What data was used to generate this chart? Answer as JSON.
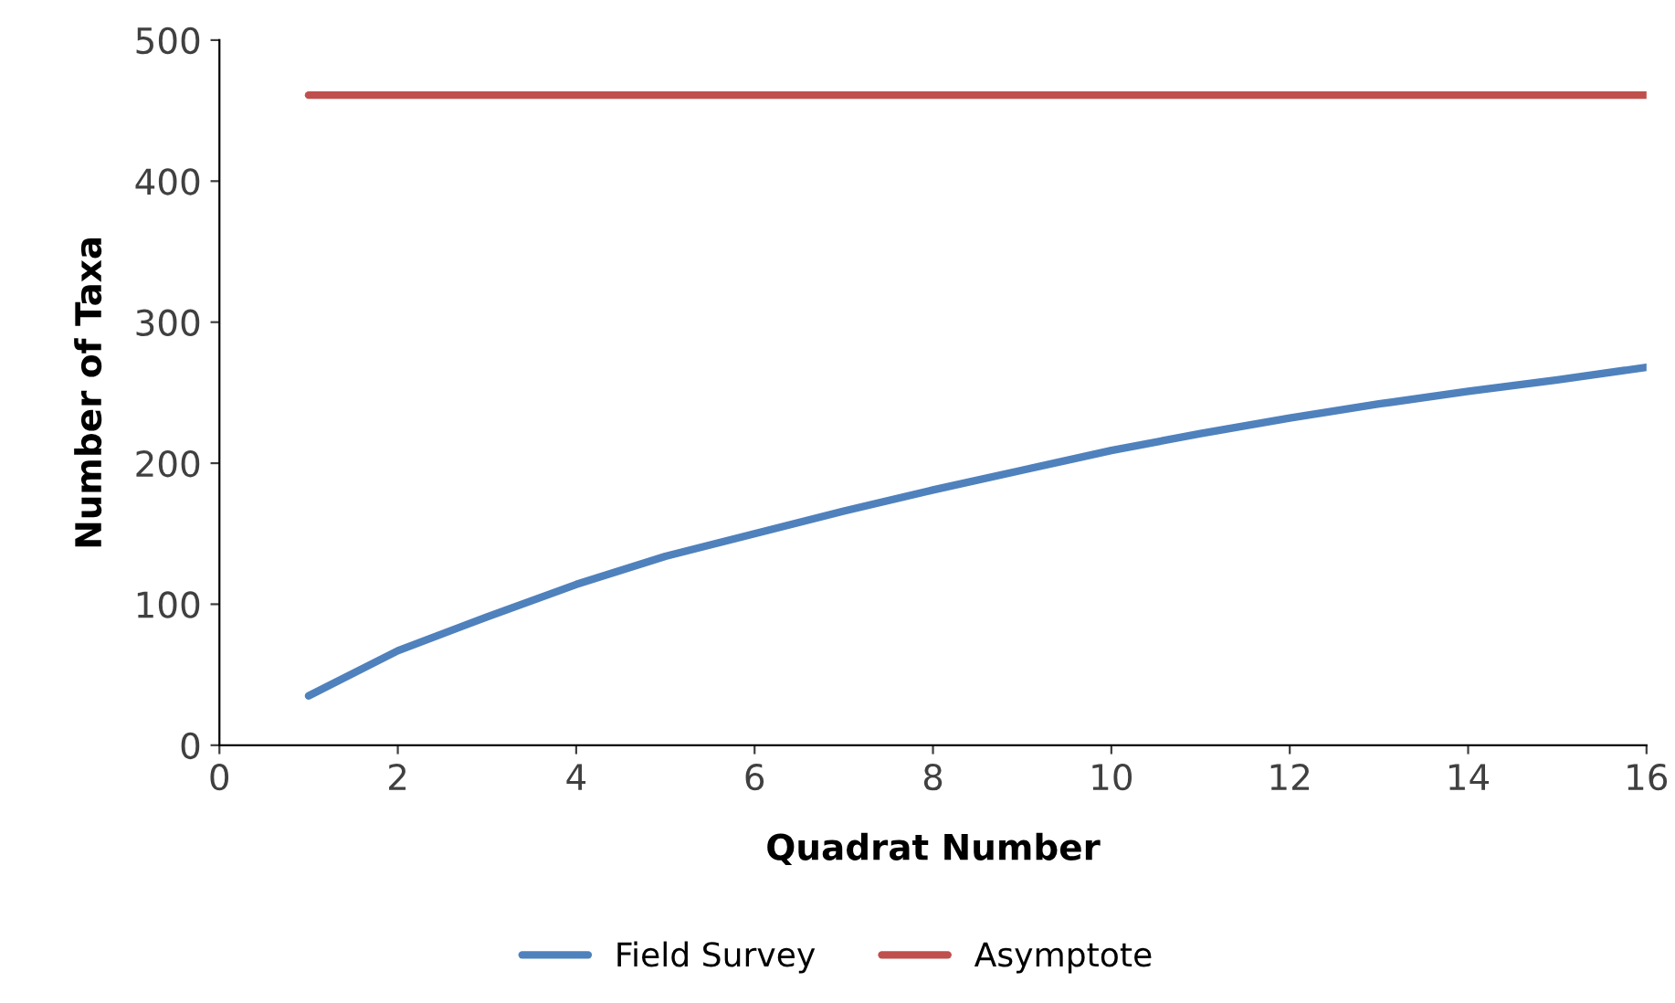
{
  "chart_data": {
    "type": "line",
    "xlabel": "Quadrat Number",
    "ylabel": "Number of Taxa",
    "series": [
      {
        "name": "Field Survey",
        "color": "#4f81bd",
        "x": [
          1,
          2,
          3,
          4,
          5,
          6,
          7,
          8,
          9,
          10,
          11,
          12,
          13,
          14,
          15,
          16
        ],
        "values": [
          35,
          67,
          91,
          114,
          134,
          150,
          166,
          181,
          195,
          209,
          221,
          232,
          242,
          251,
          259,
          268
        ]
      },
      {
        "name": "Asymptote",
        "color": "#c0504d",
        "x": [
          1,
          16
        ],
        "values": [
          461,
          461
        ]
      }
    ],
    "xlim": [
      0,
      16
    ],
    "xticks": [
      0,
      2,
      4,
      6,
      8,
      10,
      12,
      14,
      16
    ],
    "ylim": [
      0,
      500
    ],
    "yticks": [
      0,
      100,
      200,
      300,
      400,
      500
    ],
    "grid": false,
    "legend": "bottom",
    "marker": "none",
    "line_style": "solid"
  }
}
